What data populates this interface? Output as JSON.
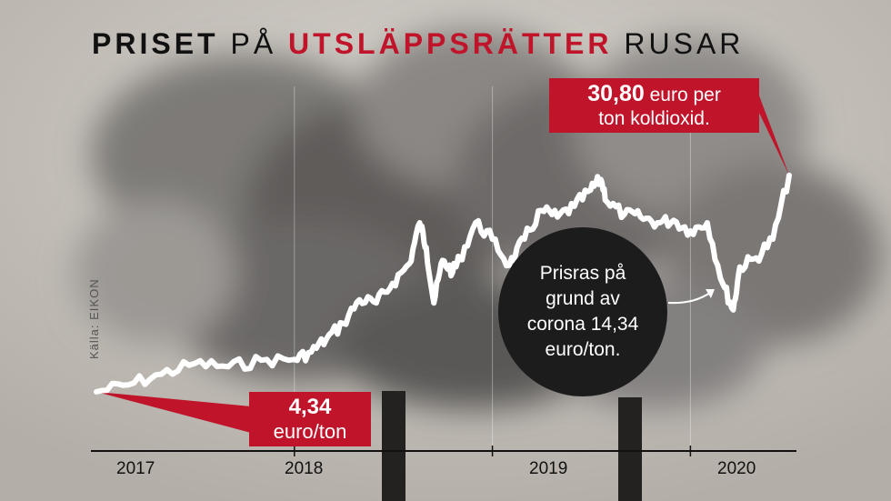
{
  "title": {
    "part1": "PRISET",
    "part2": "PÅ",
    "part3": "UTSLÄPPSRÄTTER",
    "part4": "RUSAR"
  },
  "source": "Källa: EIKON",
  "colors": {
    "accent": "#c0142a",
    "line": "#ffffff",
    "circle": "#1c1c1c"
  },
  "annotations": {
    "start_value": "4,34",
    "start_unit": "euro/ton",
    "peak_value": "30,80",
    "peak_line1": "euro per",
    "peak_line2": "ton koldioxid.",
    "drop_text": "Prisras på grund av corona 14,34 euro/ton."
  },
  "chart_data": {
    "type": "line",
    "title": "PRISET PÅ UTSLÄPPSRÄTTER RUSAR",
    "xlabel": "",
    "ylabel": "",
    "unit": "euro/ton",
    "x_ticks": [
      "2017",
      "2018",
      "2019",
      "2020"
    ],
    "xlim": [
      "2017-01",
      "2020-07"
    ],
    "ylim": [
      0,
      40
    ],
    "grid": true,
    "series": [
      {
        "values": [
          [
            "2017-01",
            4.34
          ],
          [
            "2017-03",
            5.2
          ],
          [
            "2017-05",
            6.5
          ],
          [
            "2017-07",
            7.8
          ],
          [
            "2017-09",
            7.4
          ],
          [
            "2017-11",
            8.2
          ],
          [
            "2018-01",
            8.3
          ],
          [
            "2018-02",
            9.2
          ],
          [
            "2018-03",
            10.8
          ],
          [
            "2018-04",
            12.7
          ],
          [
            "2018-05",
            15.6
          ],
          [
            "2018-06",
            15.2
          ],
          [
            "2018-07",
            17.6
          ],
          [
            "2018-08",
            20.0
          ],
          [
            "2018-08-20",
            25.0
          ],
          [
            "2018-09",
            22.0
          ],
          [
            "2018-09-15",
            15.2
          ],
          [
            "2018-10",
            20.4
          ],
          [
            "2018-10-20",
            19.0
          ],
          [
            "2018-11",
            20.5
          ],
          [
            "2018-12",
            25.0
          ],
          [
            "2019-01",
            23.0
          ],
          [
            "2019-02",
            19.8
          ],
          [
            "2019-03",
            23.0
          ],
          [
            "2019-04",
            26.5
          ],
          [
            "2019-05",
            25.7
          ],
          [
            "2019-06",
            27.0
          ],
          [
            "2019-07",
            29.0
          ],
          [
            "2019-07-20",
            30.3
          ],
          [
            "2019-08",
            27.5
          ],
          [
            "2019-09",
            26.0
          ],
          [
            "2019-10",
            25.7
          ],
          [
            "2019-11",
            25.0
          ],
          [
            "2019-12",
            25.3
          ],
          [
            "2020-01",
            24.0
          ],
          [
            "2020-02",
            25.0
          ],
          [
            "2020-03",
            17.5
          ],
          [
            "2020-03-20",
            14.34
          ],
          [
            "2020-04",
            19.6
          ],
          [
            "2020-05",
            20.7
          ],
          [
            "2020-06",
            23.0
          ],
          [
            "2020-07",
            30.8
          ]
        ]
      }
    ]
  }
}
